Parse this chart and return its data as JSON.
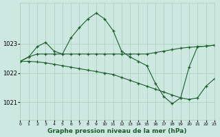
{
  "title": "Graphe pression niveau de la mer (hPa)",
  "bg_color": "#cce8e0",
  "grid_color": "#aaccbb",
  "line_color": "#1a5c2a",
  "marker": "+",
  "xlim": [
    0,
    23
  ],
  "ylim": [
    1020.4,
    1024.4
  ],
  "yticks": [
    1021,
    1022,
    1023
  ],
  "xticks": [
    0,
    1,
    2,
    3,
    4,
    5,
    6,
    7,
    8,
    9,
    10,
    11,
    12,
    13,
    14,
    15,
    16,
    17,
    18,
    19,
    20,
    21,
    22,
    23
  ],
  "series": [
    {
      "x": [
        0,
        1,
        2,
        3,
        4,
        5,
        6,
        7,
        8,
        9,
        10,
        11,
        12,
        13,
        14,
        15,
        16,
        17,
        18,
        19,
        20,
        21,
        22,
        23
      ],
      "y": [
        1022.4,
        1022.55,
        1022.65,
        1022.65,
        1022.65,
        1022.65,
        1022.65,
        1022.65,
        1022.65,
        1022.65,
        1022.65,
        1022.65,
        1022.65,
        1022.65,
        1022.65,
        1022.65,
        1022.7,
        1022.75,
        1022.8,
        1022.85,
        1022.88,
        1022.9,
        1022.92,
        1022.95
      ]
    },
    {
      "x": [
        0,
        1,
        2,
        3,
        4,
        5,
        6,
        7,
        8,
        9,
        10,
        11,
        12,
        13,
        14,
        15,
        16,
        17,
        18,
        19,
        20,
        21,
        22,
        23
      ],
      "y": [
        1022.4,
        1022.55,
        1022.9,
        1023.05,
        1022.75,
        1022.65,
        1023.2,
        1023.55,
        1023.85,
        1024.05,
        1023.85,
        1023.45,
        1022.75,
        1022.55,
        1022.4,
        1022.25,
        1021.65,
        1021.2,
        1020.95,
        1021.15,
        1022.2,
        1022.9,
        1022.92,
        1022.95
      ]
    },
    {
      "x": [
        0,
        1,
        2,
        3,
        4,
        5,
        6,
        7,
        8,
        9,
        10,
        11,
        12,
        13,
        14,
        15,
        16,
        17,
        18,
        19,
        20,
        21,
        22,
        23
      ],
      "y": [
        1022.4,
        1022.4,
        1022.38,
        1022.35,
        1022.3,
        1022.25,
        1022.2,
        1022.15,
        1022.1,
        1022.05,
        1022.0,
        1021.95,
        1021.85,
        1021.75,
        1021.65,
        1021.55,
        1021.45,
        1021.35,
        1021.25,
        1021.15,
        1021.1,
        1021.15,
        1021.55,
        1021.8
      ]
    }
  ]
}
